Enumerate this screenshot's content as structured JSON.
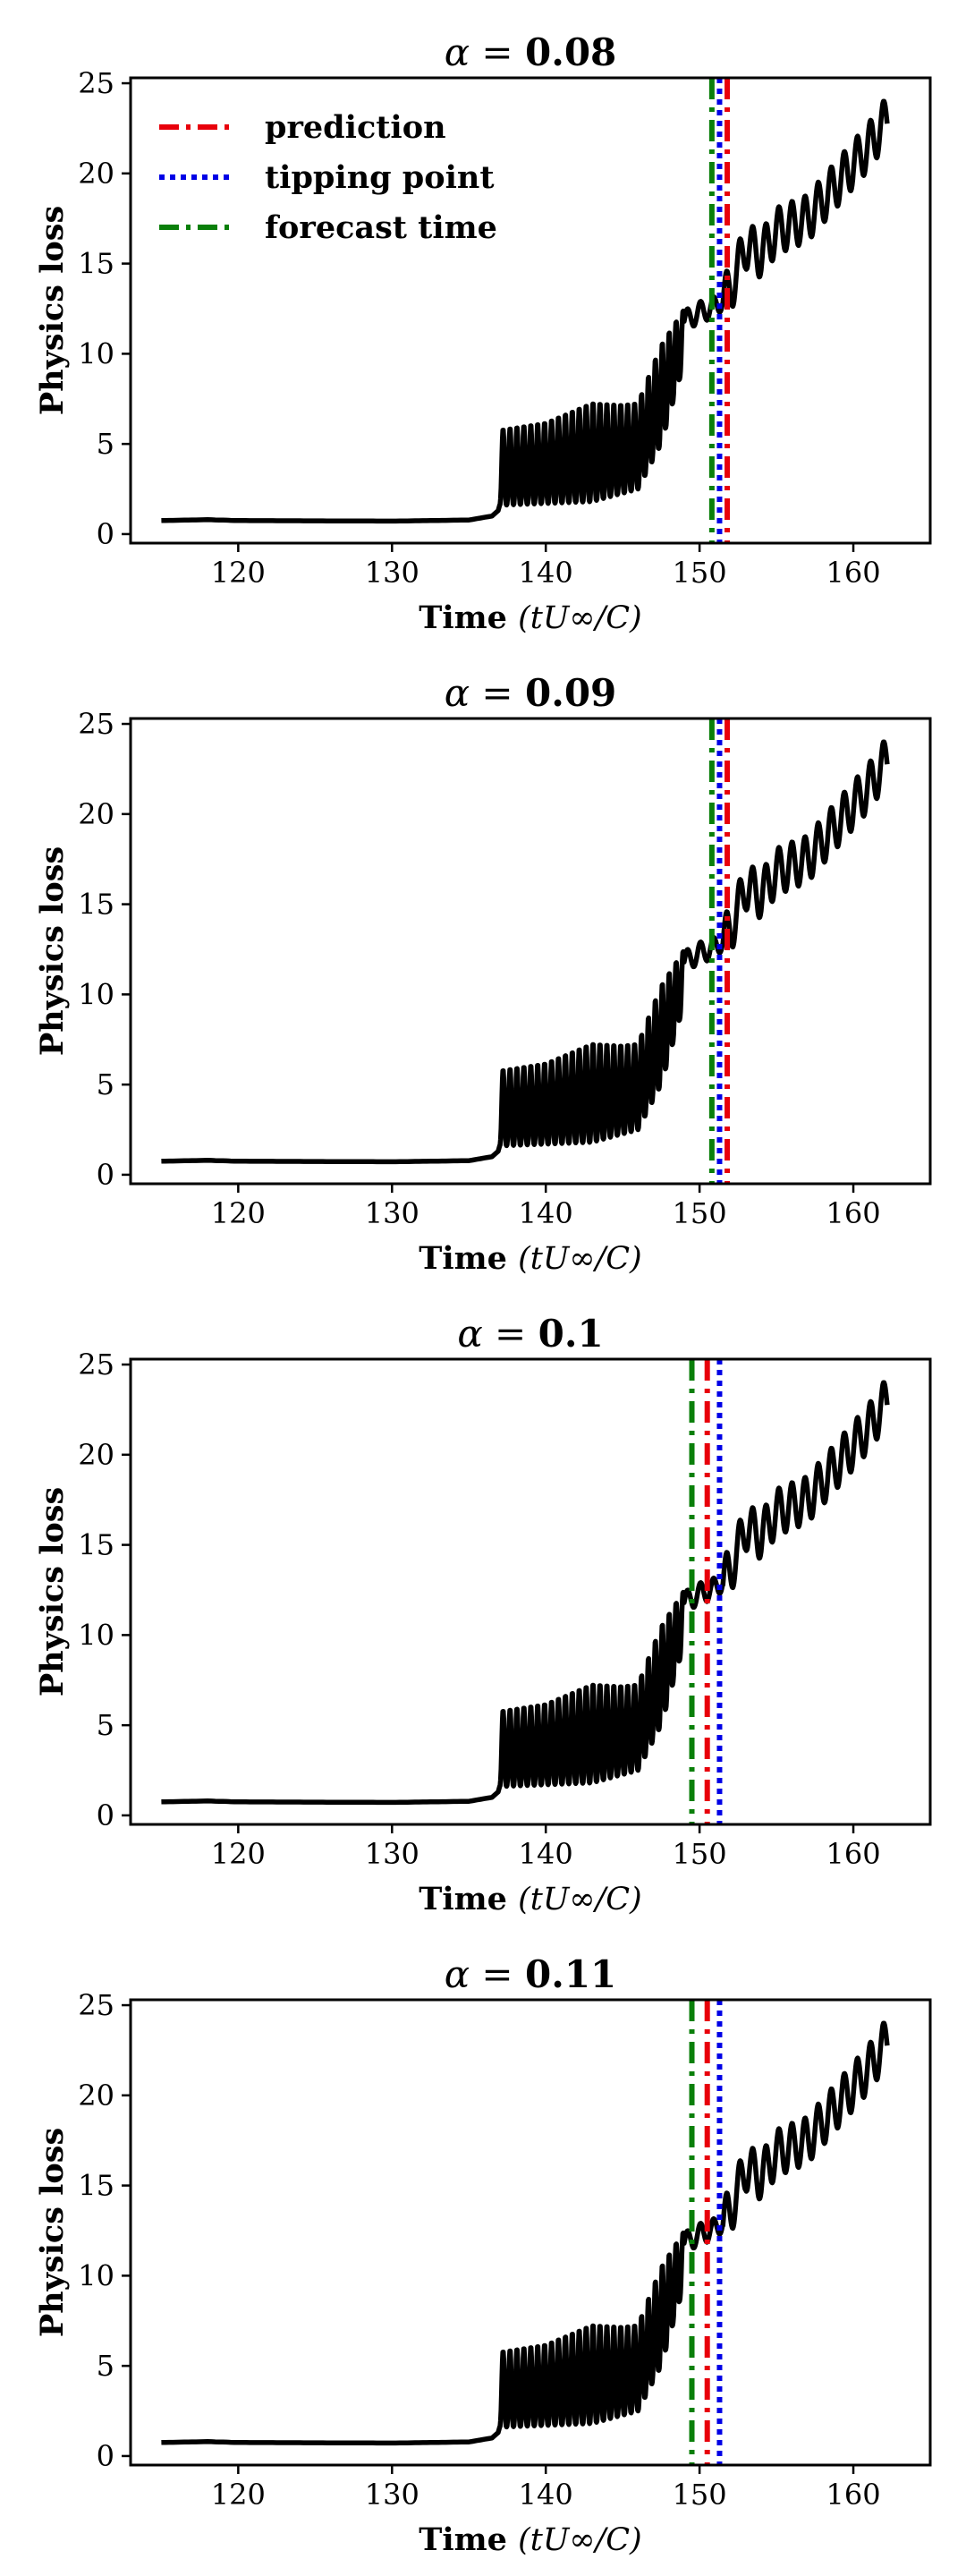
{
  "chart_data": [
    {
      "type": "line",
      "title_prefix": "α = ",
      "alpha": "0.08",
      "xlabel_word": "Time ",
      "xlabel_math": "(tU∞/C)",
      "ylabel": "Physics loss",
      "xlim": [
        113,
        165
      ],
      "ylim": [
        -0.5,
        25.3
      ],
      "xticks": [
        120,
        130,
        140,
        150,
        160
      ],
      "yticks": [
        0,
        5,
        10,
        15,
        20,
        25
      ],
      "vlines": {
        "forecast_time": 150.8,
        "tipping_point": 151.3,
        "prediction": 151.8
      },
      "legend": [
        "prediction",
        "tipping point",
        "forecast time"
      ],
      "legend_position": "top-left"
    },
    {
      "type": "line",
      "title_prefix": "α = ",
      "alpha": "0.09",
      "xlabel_word": "Time ",
      "xlabel_math": "(tU∞/C)",
      "ylabel": "Physics loss",
      "xlim": [
        113,
        165
      ],
      "ylim": [
        -0.5,
        25.3
      ],
      "xticks": [
        120,
        130,
        140,
        150,
        160
      ],
      "yticks": [
        0,
        5,
        10,
        15,
        20,
        25
      ],
      "vlines": {
        "forecast_time": 150.8,
        "tipping_point": 151.3,
        "prediction": 151.8
      }
    },
    {
      "type": "line",
      "title_prefix": "α = ",
      "alpha": "0.1",
      "xlabel_word": "Time ",
      "xlabel_math": "(tU∞/C)",
      "ylabel": "Physics loss",
      "xlim": [
        113,
        165
      ],
      "ylim": [
        -0.5,
        25.3
      ],
      "xticks": [
        120,
        130,
        140,
        150,
        160
      ],
      "yticks": [
        0,
        5,
        10,
        15,
        20,
        25
      ],
      "vlines": {
        "forecast_time": 149.5,
        "tipping_point": 151.3,
        "prediction": 150.5
      }
    },
    {
      "type": "line",
      "title_prefix": "α = ",
      "alpha": "0.11",
      "xlabel_word": "Time ",
      "xlabel_math": "(tU∞/C)",
      "ylabel": "Physics loss",
      "xlim": [
        113,
        165
      ],
      "ylim": [
        -0.5,
        25.3
      ],
      "xticks": [
        120,
        130,
        140,
        150,
        160
      ],
      "yticks": [
        0,
        5,
        10,
        15,
        20,
        25
      ],
      "vlines": {
        "forecast_time": 149.5,
        "tipping_point": 151.3,
        "prediction": 150.5
      }
    }
  ],
  "series_shape": {
    "name": "Physics loss",
    "color": "#000000",
    "baseline": [
      [
        115,
        0.75
      ],
      [
        118,
        0.8
      ],
      [
        120,
        0.75
      ],
      [
        130,
        0.72
      ],
      [
        135,
        0.78
      ],
      [
        136.5,
        1.0
      ],
      [
        136.9,
        1.3
      ]
    ],
    "osc_start": 137.0,
    "osc_end": 149.0,
    "osc_period": 0.45,
    "osc_low": [
      [
        137,
        1.6
      ],
      [
        143,
        1.8
      ],
      [
        146,
        2.5
      ],
      [
        147.5,
        5.0
      ],
      [
        149,
        9.5
      ]
    ],
    "osc_high": [
      [
        137,
        5.8
      ],
      [
        140,
        6.2
      ],
      [
        143,
        7.3
      ],
      [
        145,
        7.2
      ],
      [
        146,
        7.3
      ],
      [
        147.5,
        10.5
      ],
      [
        149,
        12.5
      ]
    ],
    "trend": [
      [
        149,
        11.8
      ],
      [
        150,
        12.3
      ],
      [
        151,
        12.6
      ],
      [
        152,
        13.5
      ],
      [
        153,
        16.0
      ],
      [
        154,
        15.5
      ],
      [
        155,
        16.8
      ],
      [
        157,
        17.5
      ],
      [
        159,
        19.5
      ],
      [
        161,
        21.5
      ],
      [
        162.2,
        23.0
      ]
    ],
    "trend_period": 0.85,
    "trend_amp": 1.3
  },
  "colors": {
    "prediction": "#e8000b",
    "tipping_point": "#0000e6",
    "forecast_time": "#0a7f0a",
    "loss": "#000000"
  }
}
